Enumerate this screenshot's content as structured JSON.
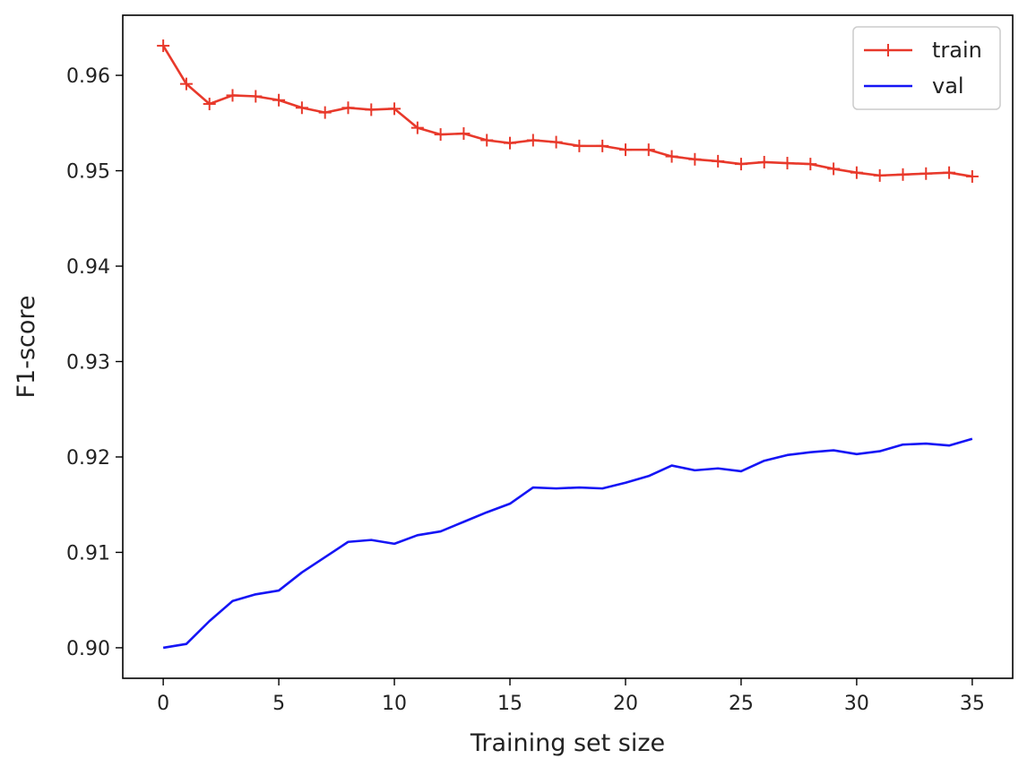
{
  "chart_data": {
    "type": "line",
    "title": "",
    "xlabel": "Training set size",
    "ylabel": "F1-score",
    "xlim": [
      -1.75,
      36.75
    ],
    "ylim": [
      0.8968,
      0.9663
    ],
    "xticks": [
      0,
      5,
      10,
      15,
      20,
      25,
      30,
      35
    ],
    "xtick_labels": [
      "0",
      "5",
      "10",
      "15",
      "20",
      "25",
      "30",
      "35"
    ],
    "yticks": [
      0.9,
      0.91,
      0.92,
      0.93,
      0.94,
      0.95,
      0.96
    ],
    "ytick_labels": [
      "0.90",
      "0.91",
      "0.92",
      "0.93",
      "0.94",
      "0.95",
      "0.96"
    ],
    "grid": false,
    "legend_position": "top-right",
    "x": [
      0,
      1,
      2,
      3,
      4,
      5,
      6,
      7,
      8,
      9,
      10,
      11,
      12,
      13,
      14,
      15,
      16,
      17,
      18,
      19,
      20,
      21,
      22,
      23,
      24,
      25,
      26,
      27,
      28,
      29,
      30,
      31,
      32,
      33,
      34,
      35
    ],
    "series": [
      {
        "name": "train",
        "color": "#e8392b",
        "marker": "+",
        "values": [
          0.9631,
          0.9591,
          0.957,
          0.9579,
          0.9578,
          0.9574,
          0.9566,
          0.9561,
          0.9566,
          0.9564,
          0.9565,
          0.9545,
          0.9538,
          0.9539,
          0.9532,
          0.9529,
          0.9532,
          0.953,
          0.9526,
          0.9526,
          0.9522,
          0.9522,
          0.9515,
          0.9512,
          0.951,
          0.9507,
          0.9509,
          0.9508,
          0.9507,
          0.9502,
          0.9498,
          0.9495,
          0.9496,
          0.9497,
          0.9498,
          0.9494
        ]
      },
      {
        "name": "val",
        "color": "#1515f5",
        "marker": "",
        "values": [
          0.9,
          0.9004,
          0.9028,
          0.9049,
          0.9056,
          0.906,
          0.9079,
          0.9095,
          0.9111,
          0.9113,
          0.9109,
          0.9118,
          0.9122,
          0.9132,
          0.9142,
          0.9151,
          0.9168,
          0.9167,
          0.9168,
          0.9167,
          0.9173,
          0.918,
          0.9191,
          0.9186,
          0.9188,
          0.9185,
          0.9196,
          0.9202,
          0.9205,
          0.9207,
          0.9203,
          0.9206,
          0.9213,
          0.9214,
          0.9212,
          0.9219
        ]
      }
    ]
  }
}
